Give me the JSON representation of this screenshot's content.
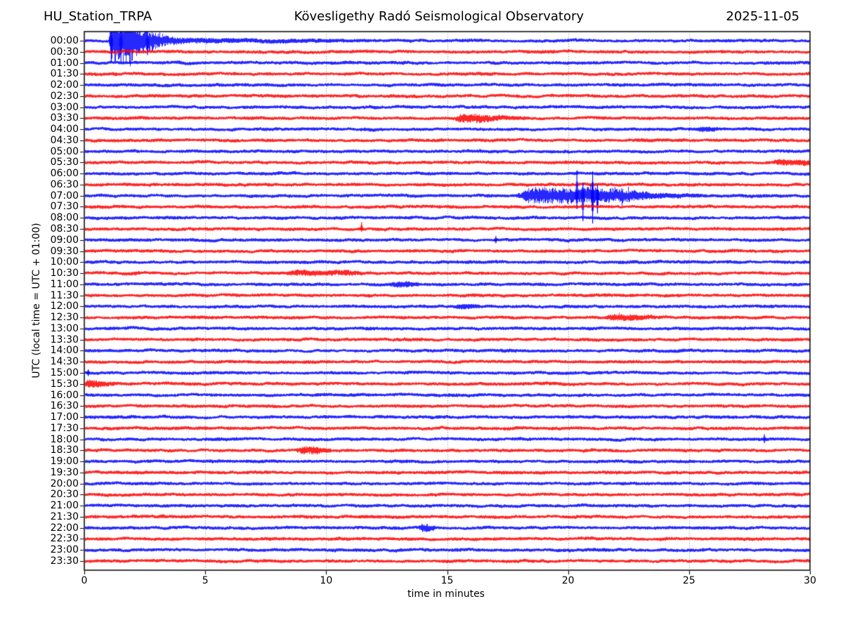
{
  "header": {
    "station": "HU_Station_TRPA",
    "observatory": "Kövesligethy Radó Seismological Observatory",
    "date": "2025-11-05"
  },
  "chart_data": {
    "type": "line",
    "subtype": "helicorder-dayplot",
    "title": "HU_Station_TRPA — Kövesligethy Radó Seismological Observatory — 2025-11-05",
    "xlabel": "time in minutes",
    "ylabel": "UTC (local time = UTC + 01:00)",
    "xlim": [
      0,
      30
    ],
    "x_ticks": [
      0,
      5,
      10,
      15,
      20,
      25,
      30
    ],
    "grid": "dotted vertical lines every 5 minutes",
    "minutes_per_row": 30,
    "trace_colors": [
      "#0000ff",
      "#ff0000"
    ],
    "trace_color_rule": "full-hour rows blue, half-hour rows red, alternating",
    "grid_color": "#555555",
    "axis_color": "#000000",
    "background_noise_amp": 0.12,
    "rows": [
      "00:00",
      "00:30",
      "01:00",
      "01:30",
      "02:00",
      "02:30",
      "03:00",
      "03:30",
      "04:00",
      "04:30",
      "05:00",
      "05:30",
      "06:00",
      "06:30",
      "07:00",
      "07:30",
      "08:00",
      "08:30",
      "09:00",
      "09:30",
      "10:00",
      "10:30",
      "11:00",
      "11:30",
      "12:00",
      "12:30",
      "13:00",
      "13:30",
      "14:00",
      "14:30",
      "15:00",
      "15:30",
      "16:00",
      "16:30",
      "17:00",
      "17:30",
      "18:00",
      "18:30",
      "19:00",
      "19:30",
      "20:00",
      "20:30",
      "21:00",
      "21:30",
      "22:00",
      "22:30",
      "23:00",
      "23:30"
    ],
    "events": [
      {
        "row": "00:00",
        "type": "quake",
        "start": 1.0,
        "end": 12.0,
        "amp": 2.1,
        "attack": 0.12,
        "hold": 0.85,
        "tau": 0.85,
        "coda_amp": 0.18,
        "spikes": [
          {
            "t": 1.1,
            "up": 0.8,
            "down": 2.0
          },
          {
            "t": 1.5,
            "up": 0.8,
            "down": 2.1
          },
          {
            "t": 2.6,
            "up": 0.5,
            "down": 1.3
          }
        ]
      },
      {
        "row": "03:30",
        "type": "burst",
        "start": 15.3,
        "end": 18.4,
        "amp": 0.33,
        "attack": 0.25,
        "hold": 0.8,
        "tau": 0.8
      },
      {
        "row": "04:00",
        "type": "burst",
        "start": 25.2,
        "end": 26.2,
        "amp": 0.14,
        "attack": 0.3,
        "hold": 0.3,
        "tau": 0.4
      },
      {
        "row": "05:30",
        "type": "burst",
        "start": 28.4,
        "end": 30.0,
        "amp": 0.17,
        "attack": 0.3,
        "hold": 1.4,
        "tau": 0.5
      },
      {
        "row": "07:00",
        "type": "quake",
        "start": 17.9,
        "end": 25.5,
        "amp": 0.62,
        "attack": 0.5,
        "hold": 3.8,
        "tau": 1.2,
        "coda_amp": 0.13,
        "spikes": [
          {
            "t": 20.35,
            "up": 2.3,
            "down": 1.2
          },
          {
            "t": 20.6,
            "up": 1.2,
            "down": 2.3
          },
          {
            "t": 21.0,
            "up": 2.2,
            "down": 2.5
          },
          {
            "t": 21.2,
            "up": 1.0,
            "down": 1.6
          }
        ]
      },
      {
        "row": "08:30",
        "type": "spike-only",
        "spikes": [
          {
            "t": 11.45,
            "up": 0.6,
            "down": 0.25
          }
        ]
      },
      {
        "row": "09:00",
        "type": "spike-only",
        "spikes": [
          {
            "t": 17.0,
            "up": 0.35,
            "down": 0.3
          }
        ]
      },
      {
        "row": "10:30",
        "type": "burst",
        "start": 8.3,
        "end": 11.5,
        "amp": 0.16,
        "attack": 0.5,
        "hold": 2.0,
        "tau": 0.8
      },
      {
        "row": "11:00",
        "type": "burst",
        "start": 12.6,
        "end": 13.8,
        "amp": 0.16,
        "attack": 0.3,
        "hold": 0.5,
        "tau": 0.4
      },
      {
        "row": "12:00",
        "type": "burst",
        "start": 15.2,
        "end": 16.3,
        "amp": 0.14,
        "attack": 0.3,
        "hold": 0.4,
        "tau": 0.4
      },
      {
        "row": "12:30",
        "type": "burst",
        "start": 21.4,
        "end": 23.6,
        "amp": 0.18,
        "attack": 0.4,
        "hold": 1.0,
        "tau": 0.7
      },
      {
        "row": "15:00",
        "type": "spike-only",
        "spikes": [
          {
            "t": 0.15,
            "up": 0.32,
            "down": 0.3
          }
        ]
      },
      {
        "row": "15:30",
        "type": "burst",
        "start": 0.0,
        "end": 1.4,
        "amp": 0.22,
        "attack": 0.1,
        "hold": 0.5,
        "tau": 0.4
      },
      {
        "row": "18:00",
        "type": "spike-only",
        "spikes": [
          {
            "t": 28.1,
            "up": 0.45,
            "down": 0.35
          }
        ]
      },
      {
        "row": "18:30",
        "type": "burst",
        "start": 8.7,
        "end": 10.2,
        "amp": 0.25,
        "attack": 0.3,
        "hold": 0.6,
        "tau": 0.4
      },
      {
        "row": "22:00",
        "type": "burst",
        "start": 13.8,
        "end": 14.5,
        "amp": 0.3,
        "attack": 0.15,
        "hold": 0.25,
        "tau": 0.25
      }
    ]
  }
}
